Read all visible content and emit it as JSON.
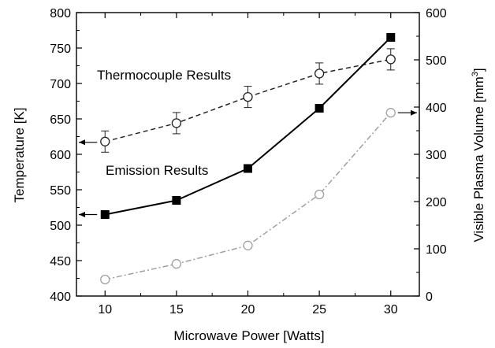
{
  "chart_data": {
    "type": "line",
    "xlabel": "Microwave Power [Watts]",
    "ylabel_left": "Temperature [K]",
    "ylabel_right_main": "Visible Plasma Volume [mm",
    "ylabel_right_sup": "3",
    "ylabel_right_close": "]",
    "xlim": [
      8,
      32
    ],
    "ylim_left": [
      400,
      800
    ],
    "ylim_right": [
      0,
      600
    ],
    "x_ticks": [
      "10",
      "15",
      "20",
      "25",
      "30"
    ],
    "y_left_ticks": [
      "400",
      "450",
      "500",
      "550",
      "600",
      "650",
      "700",
      "750",
      "800"
    ],
    "y_right_ticks": [
      "0",
      "100",
      "200",
      "300",
      "400",
      "500",
      "600"
    ],
    "x": [
      10,
      15,
      20,
      25,
      30
    ],
    "series": [
      {
        "axis": "left",
        "values": [
          618,
          644,
          681,
          714,
          734
        ],
        "error": [
          15,
          15,
          15,
          15,
          15
        ],
        "marker": "open-circle",
        "line": "dashed",
        "color": "#222222"
      },
      {
        "axis": "left",
        "values": [
          515,
          535,
          580,
          665,
          765
        ],
        "marker": "filled-square",
        "line": "solid",
        "color": "#000000"
      },
      {
        "axis": "right",
        "values": [
          35,
          68,
          107,
          215,
          388
        ],
        "marker": "open-circle",
        "line": "dash-dot",
        "color": "#a0a0a0"
      }
    ],
    "annotations": {
      "thermocouple": "Thermocouple Results",
      "emission": "Emission Results"
    }
  }
}
